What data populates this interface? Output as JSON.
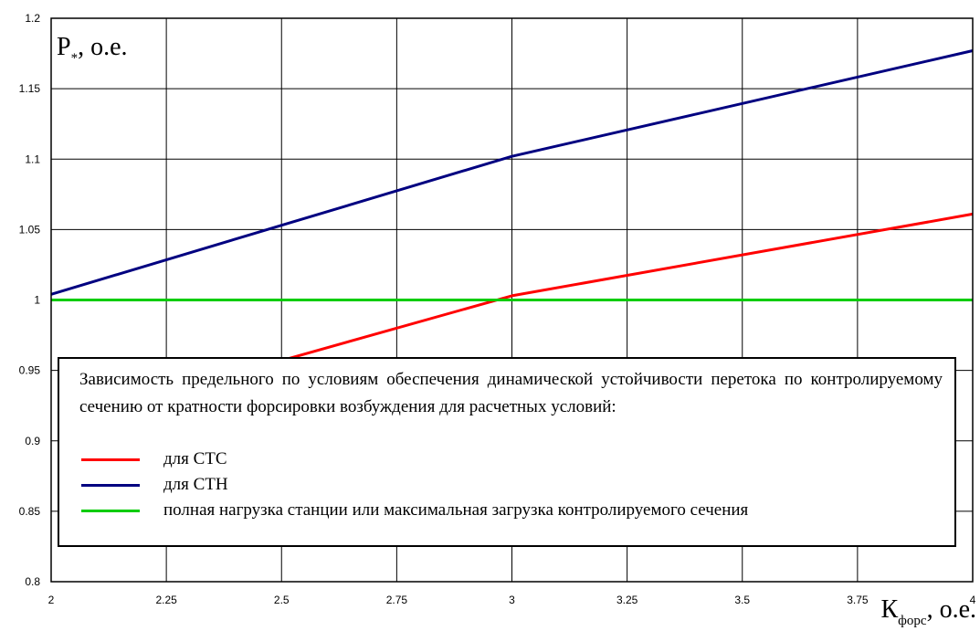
{
  "chart_data": {
    "type": "line",
    "ylabel_main": "P",
    "ylabel_sub": "*",
    "ylabel_rest": ", о.е.",
    "xlabel_main": "К",
    "xlabel_sub": "форс",
    "xlabel_rest": ", о.е.",
    "xlim": [
      2,
      4
    ],
    "ylim": [
      0.8,
      1.2
    ],
    "x_ticks": [
      2,
      2.25,
      2.5,
      2.75,
      3,
      3.25,
      3.5,
      3.75,
      4
    ],
    "x_tick_labels": [
      "2",
      "2.25",
      "2.5",
      "2.75",
      "3",
      "3.25",
      "3.5",
      "3.75",
      "4"
    ],
    "y_ticks": [
      0.8,
      0.85,
      0.9,
      0.95,
      1,
      1.05,
      1.1,
      1.15,
      1.2
    ],
    "y_tick_labels": [
      "0.8",
      "0.85",
      "0.9",
      "0.95",
      "1",
      "1.05",
      "1.1",
      "1.15",
      "1.2"
    ],
    "grid": true,
    "legend_title": "Зависимость предельного по условиям обеспечения динамической устойчивости перетока по контролируемому сечению от кратности форсировки возбуждения для расчетных условий:",
    "series": [
      {
        "name": "для СТС",
        "color": "#ff0000",
        "x": [
          2.5,
          3,
          4
        ],
        "y": [
          0.957,
          1.003,
          1.061
        ]
      },
      {
        "name": "для СТН",
        "color": "#000080",
        "x": [
          2,
          2.5,
          3,
          4
        ],
        "y": [
          1.004,
          1.053,
          1.102,
          1.177
        ]
      },
      {
        "name": "полная нагрузка станции или максимальная загрузка контролируемого сечения",
        "color": "#00cc00",
        "x": [
          2,
          4
        ],
        "y": [
          1,
          1
        ]
      }
    ]
  }
}
